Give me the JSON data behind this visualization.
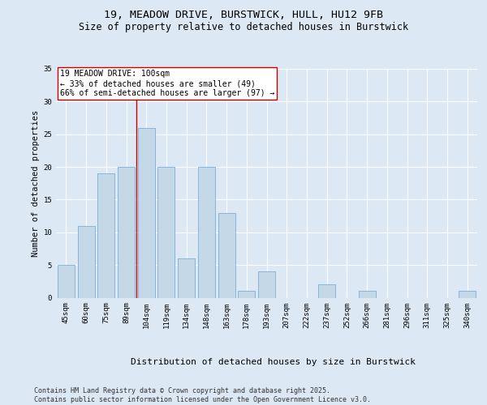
{
  "title_line1": "19, MEADOW DRIVE, BURSTWICK, HULL, HU12 9FB",
  "title_line2": "Size of property relative to detached houses in Burstwick",
  "xlabel": "Distribution of detached houses by size in Burstwick",
  "ylabel": "Number of detached properties",
  "categories": [
    "45sqm",
    "60sqm",
    "75sqm",
    "89sqm",
    "104sqm",
    "119sqm",
    "134sqm",
    "148sqm",
    "163sqm",
    "178sqm",
    "193sqm",
    "207sqm",
    "222sqm",
    "237sqm",
    "252sqm",
    "266sqm",
    "281sqm",
    "296sqm",
    "311sqm",
    "325sqm",
    "340sqm"
  ],
  "values": [
    5,
    11,
    19,
    20,
    26,
    20,
    6,
    20,
    13,
    1,
    4,
    0,
    0,
    2,
    0,
    1,
    0,
    0,
    0,
    0,
    1
  ],
  "bar_color": "#c5d8e8",
  "bar_edge_color": "#7bafd4",
  "property_label": "19 MEADOW DRIVE: 100sqm",
  "annotation_line1": "← 33% of detached houses are smaller (49)",
  "annotation_line2": "66% of semi-detached houses are larger (97) →",
  "vline_color": "#cc0000",
  "annotation_box_color": "#ffffff",
  "annotation_box_edge": "#cc0000",
  "ylim": [
    0,
    35
  ],
  "yticks": [
    0,
    5,
    10,
    15,
    20,
    25,
    30,
    35
  ],
  "footer_line1": "Contains HM Land Registry data © Crown copyright and database right 2025.",
  "footer_line2": "Contains public sector information licensed under the Open Government Licence v3.0.",
  "background_color": "#dce8f4",
  "plot_bg_color": "#dce8f4",
  "grid_color": "#ffffff",
  "title_fontsize": 9.5,
  "subtitle_fontsize": 8.5,
  "axis_label_fontsize": 7.5,
  "tick_fontsize": 6.5,
  "footer_fontsize": 6.0,
  "annotation_fontsize": 7.0
}
